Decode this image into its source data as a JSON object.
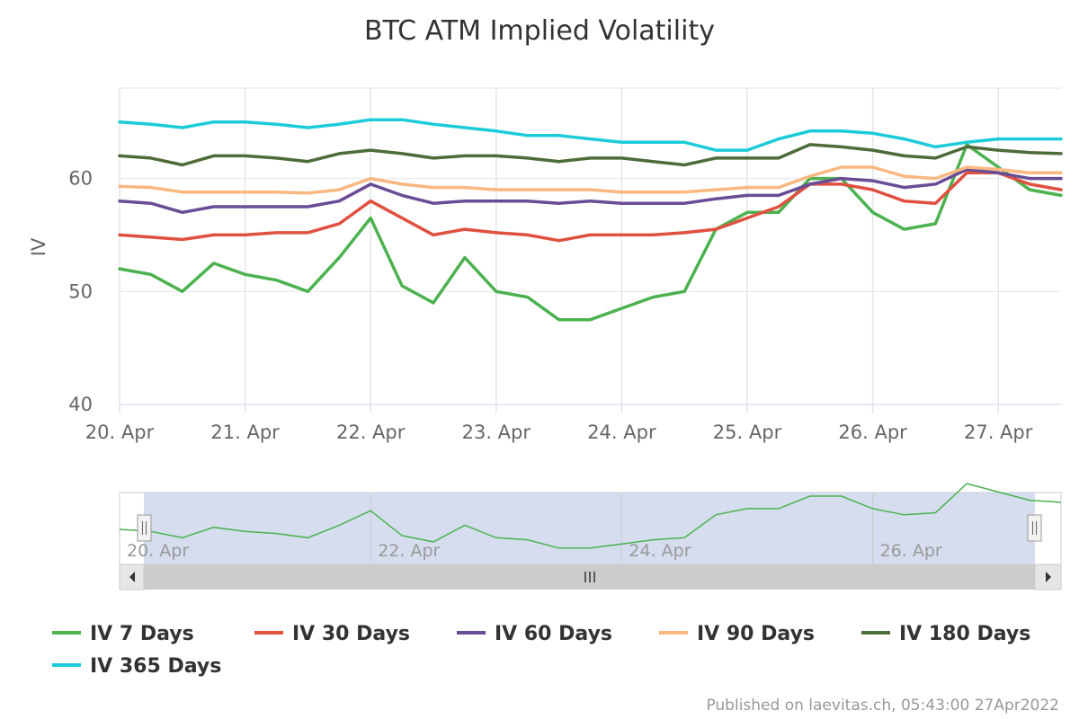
{
  "chart_data": {
    "type": "line",
    "title": "BTC ATM Implied Volatility",
    "ylabel": "IV",
    "xlabel": "",
    "x_unit": "day of April 2022",
    "xlim": [
      20,
      27.5
    ],
    "ylim": [
      40,
      68
    ],
    "yticks": [
      40,
      50,
      60
    ],
    "xticks": [
      {
        "x": 20,
        "label": "20. Apr"
      },
      {
        "x": 21,
        "label": "21. Apr"
      },
      {
        "x": 22,
        "label": "22. Apr"
      },
      {
        "x": 23,
        "label": "23. Apr"
      },
      {
        "x": 24,
        "label": "24. Apr"
      },
      {
        "x": 25,
        "label": "25. Apr"
      },
      {
        "x": 26,
        "label": "26. Apr"
      },
      {
        "x": 27,
        "label": "27. Apr"
      }
    ],
    "grid": true,
    "legend_position": "bottom",
    "x": [
      20.0,
      20.25,
      20.5,
      20.75,
      21.0,
      21.25,
      21.5,
      21.75,
      22.0,
      22.25,
      22.5,
      22.75,
      23.0,
      23.25,
      23.5,
      23.75,
      24.0,
      24.25,
      24.5,
      24.75,
      25.0,
      25.25,
      25.5,
      25.75,
      26.0,
      26.25,
      26.5,
      26.75,
      27.0,
      27.25,
      27.5
    ],
    "series": [
      {
        "name": "IV 7 Days",
        "color": "#4cb24f",
        "values": [
          52.0,
          51.5,
          50.0,
          52.5,
          51.5,
          51.0,
          50.0,
          53.0,
          56.5,
          50.5,
          49.0,
          53.0,
          50.0,
          49.5,
          47.5,
          47.5,
          48.5,
          49.5,
          50.0,
          55.5,
          57.0,
          57.0,
          60.0,
          60.0,
          57.0,
          55.5,
          56.0,
          63.0,
          61.0,
          59.0,
          58.5
        ]
      },
      {
        "name": "IV 30 Days",
        "color": "#e05040",
        "values": [
          55.0,
          54.8,
          54.6,
          55.0,
          55.0,
          55.2,
          55.2,
          56.0,
          58.0,
          56.5,
          55.0,
          55.5,
          55.2,
          55.0,
          54.5,
          55.0,
          55.0,
          55.0,
          55.2,
          55.5,
          56.5,
          57.5,
          59.5,
          59.5,
          59.0,
          58.0,
          57.8,
          60.5,
          60.5,
          59.5,
          59.0
        ]
      },
      {
        "name": "IV 60 Days",
        "color": "#6a4c96",
        "values": [
          58.0,
          57.8,
          57.0,
          57.5,
          57.5,
          57.5,
          57.5,
          58.0,
          59.5,
          58.5,
          57.8,
          58.0,
          58.0,
          58.0,
          57.8,
          58.0,
          57.8,
          57.8,
          57.8,
          58.2,
          58.5,
          58.5,
          59.5,
          60.0,
          59.8,
          59.2,
          59.5,
          60.8,
          60.5,
          60.0,
          60.0
        ]
      },
      {
        "name": "IV 90 Days",
        "color": "#f8b880",
        "values": [
          59.3,
          59.2,
          58.8,
          58.8,
          58.8,
          58.8,
          58.7,
          59.0,
          60.0,
          59.5,
          59.2,
          59.2,
          59.0,
          59.0,
          59.0,
          59.0,
          58.8,
          58.8,
          58.8,
          59.0,
          59.2,
          59.2,
          60.2,
          61.0,
          61.0,
          60.2,
          60.0,
          61.0,
          60.8,
          60.5,
          60.5
        ]
      },
      {
        "name": "IV 180 Days",
        "color": "#4e6b3a",
        "values": [
          62.0,
          61.8,
          61.2,
          62.0,
          62.0,
          61.8,
          61.5,
          62.2,
          62.5,
          62.2,
          61.8,
          62.0,
          62.0,
          61.8,
          61.5,
          61.8,
          61.8,
          61.5,
          61.2,
          61.8,
          61.8,
          61.8,
          63.0,
          62.8,
          62.5,
          62.0,
          61.8,
          62.8,
          62.5,
          62.3,
          62.2
        ]
      },
      {
        "name": "IV 365 Days",
        "color": "#1ccbd8",
        "values": [
          65.0,
          64.8,
          64.5,
          65.0,
          65.0,
          64.8,
          64.5,
          64.8,
          65.2,
          65.2,
          64.8,
          64.5,
          64.2,
          63.8,
          63.8,
          63.5,
          63.2,
          63.2,
          63.2,
          62.5,
          62.5,
          63.5,
          64.2,
          64.2,
          64.0,
          63.5,
          62.8,
          63.2,
          63.5,
          63.5,
          63.5
        ]
      }
    ]
  },
  "navigator": {
    "tick_labels": [
      "20. Apr",
      "22. Apr",
      "24. Apr",
      "26. Apr"
    ],
    "scroll_left_icon": "arrow-left-icon",
    "scroll_right_icon": "arrow-right-icon",
    "scroll_thumb_icon": "grip-icon"
  },
  "credit": "Published on laevitas.ch, 05:43:00 27Apr2022"
}
